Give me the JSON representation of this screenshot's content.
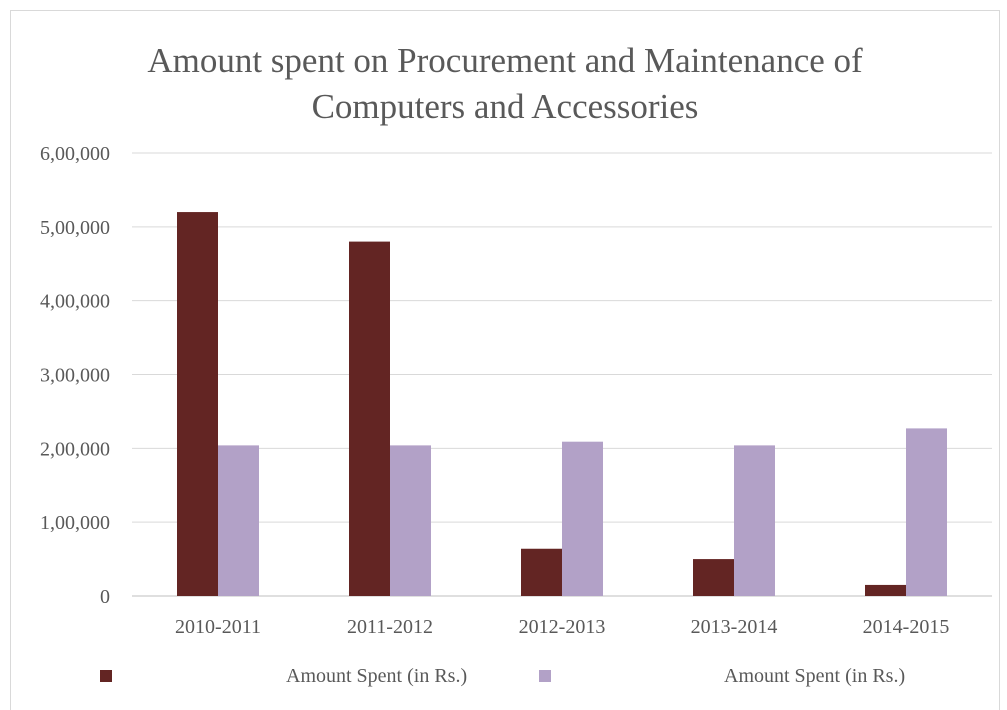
{
  "chart_data": {
    "type": "bar",
    "title_lines": [
      "Amount spent on Procurement and Maintenance of",
      "Computers and Accessories"
    ],
    "categories": [
      "2010-2011",
      "2011-2012",
      "2012-2013",
      "2013-2014",
      "2014-2015"
    ],
    "series": [
      {
        "name": "Amount Spent (in Rs.)",
        "color": "#632523",
        "values": [
          520000,
          480000,
          64000,
          50000,
          15000
        ]
      },
      {
        "name": "Amount Spent (in Rs.)",
        "color": "#b2a1c7",
        "values": [
          204000,
          204000,
          209000,
          204000,
          227000
        ]
      }
    ],
    "ylim": [
      0,
      600000
    ],
    "yticks": [
      0,
      100000,
      200000,
      300000,
      400000,
      500000,
      600000
    ],
    "ytick_labels": [
      "0",
      "1,00,000",
      "2,00,000",
      "3,00,000",
      "4,00,000",
      "5,00,000",
      "6,00,000"
    ],
    "grid": true,
    "legend_position": "bottom"
  }
}
